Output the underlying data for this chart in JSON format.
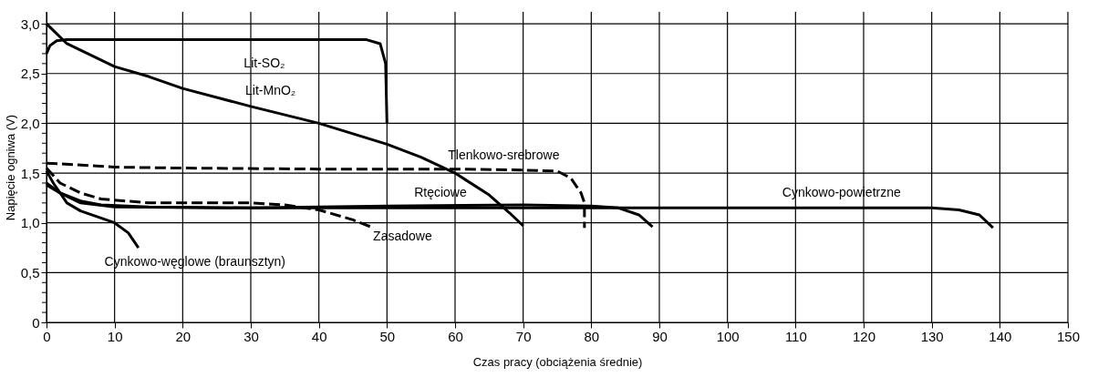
{
  "chart_data": {
    "type": "line",
    "xlabel": "Czas pracy (obciążenia średnie)",
    "ylabel": "Napięcie ogniwa (V)",
    "xlim": [
      0,
      150
    ],
    "ylim": [
      0,
      3.12
    ],
    "xticks": [
      0,
      10,
      20,
      30,
      40,
      50,
      60,
      70,
      80,
      90,
      100,
      110,
      120,
      130,
      140,
      150
    ],
    "yticks": [
      {
        "value": 0,
        "label": "0"
      },
      {
        "value": 0.1,
        "label": null
      },
      {
        "value": 0.2,
        "label": null
      },
      {
        "value": 0.3,
        "label": null
      },
      {
        "value": 0.4,
        "label": null
      },
      {
        "value": 0.5,
        "label": "0,5"
      },
      {
        "value": 0.6,
        "label": null
      },
      {
        "value": 0.7,
        "label": null
      },
      {
        "value": 0.8,
        "label": null
      },
      {
        "value": 0.9,
        "label": null
      },
      {
        "value": 1.0,
        "label": "1,0"
      },
      {
        "value": 1.1,
        "label": null
      },
      {
        "value": 1.2,
        "label": null
      },
      {
        "value": 1.3,
        "label": null
      },
      {
        "value": 1.4,
        "label": null
      },
      {
        "value": 1.5,
        "label": "1,5"
      },
      {
        "value": 1.6,
        "label": null
      },
      {
        "value": 1.7,
        "label": null
      },
      {
        "value": 1.8,
        "label": null
      },
      {
        "value": 1.9,
        "label": null
      },
      {
        "value": 2.0,
        "label": "2,0"
      },
      {
        "value": 2.1,
        "label": null
      },
      {
        "value": 2.2,
        "label": null
      },
      {
        "value": 2.3,
        "label": null
      },
      {
        "value": 2.4,
        "label": null
      },
      {
        "value": 2.5,
        "label": "2,5"
      },
      {
        "value": 2.6,
        "label": null
      },
      {
        "value": 2.7,
        "label": null
      },
      {
        "value": 2.8,
        "label": null
      },
      {
        "value": 2.9,
        "label": null
      },
      {
        "value": 3.0,
        "label": "3,0"
      }
    ],
    "grid": true,
    "marker": "none",
    "series": [
      {
        "name": "Lit-SO₂",
        "color": "#000000",
        "line_style": "solid",
        "x": [
          0,
          0.5,
          1.5,
          3,
          47,
          49,
          49.8,
          50
        ],
        "values": [
          2.7,
          2.78,
          2.83,
          2.84,
          2.84,
          2.8,
          2.6,
          2.0
        ]
      },
      {
        "name": "Lit-MnO₂",
        "color": "#000000",
        "line_style": "solid",
        "x": [
          0,
          3,
          10,
          15,
          20,
          30,
          40,
          50,
          55,
          60,
          65,
          68,
          70
        ],
        "values": [
          3.0,
          2.8,
          2.57,
          2.47,
          2.35,
          2.17,
          2.0,
          1.79,
          1.66,
          1.5,
          1.28,
          1.1,
          0.97
        ]
      },
      {
        "name": "Tlenkowo-srebrowe",
        "color": "#000000",
        "line_style": "dashed",
        "x": [
          0,
          10,
          20,
          40,
          60,
          70,
          75,
          77,
          78.5,
          79,
          79
        ],
        "values": [
          1.6,
          1.56,
          1.55,
          1.54,
          1.54,
          1.53,
          1.52,
          1.45,
          1.3,
          1.2,
          0.95
        ]
      },
      {
        "name": "Rtęciowe",
        "color": "#000000",
        "line_style": "solid",
        "x": [
          0,
          2,
          5,
          8,
          15,
          30,
          50,
          70,
          80,
          84,
          87,
          89
        ],
        "values": [
          1.38,
          1.3,
          1.22,
          1.18,
          1.16,
          1.15,
          1.17,
          1.18,
          1.17,
          1.15,
          1.08,
          0.96
        ]
      },
      {
        "name": "Zasadowe",
        "color": "#000000",
        "line_style": "dashed",
        "x": [
          0,
          2,
          5,
          8,
          15,
          30,
          35,
          40,
          45,
          48
        ],
        "values": [
          1.55,
          1.4,
          1.3,
          1.24,
          1.2,
          1.2,
          1.18,
          1.13,
          1.03,
          0.95
        ]
      },
      {
        "name": "Cynkowo-węglowe (braunsztyn)",
        "color": "#000000",
        "line_style": "solid",
        "x": [
          0,
          1,
          3,
          5,
          10,
          12,
          13.5
        ],
        "values": [
          1.52,
          1.4,
          1.2,
          1.12,
          1.0,
          0.9,
          0.75
        ]
      },
      {
        "name": "Cynkowo-powietrzne",
        "color": "#000000",
        "line_style": "solid",
        "x": [
          0,
          2,
          5,
          10,
          30,
          60,
          130,
          134,
          137,
          139
        ],
        "values": [
          1.4,
          1.3,
          1.2,
          1.16,
          1.15,
          1.15,
          1.15,
          1.13,
          1.08,
          0.95
        ]
      }
    ]
  }
}
